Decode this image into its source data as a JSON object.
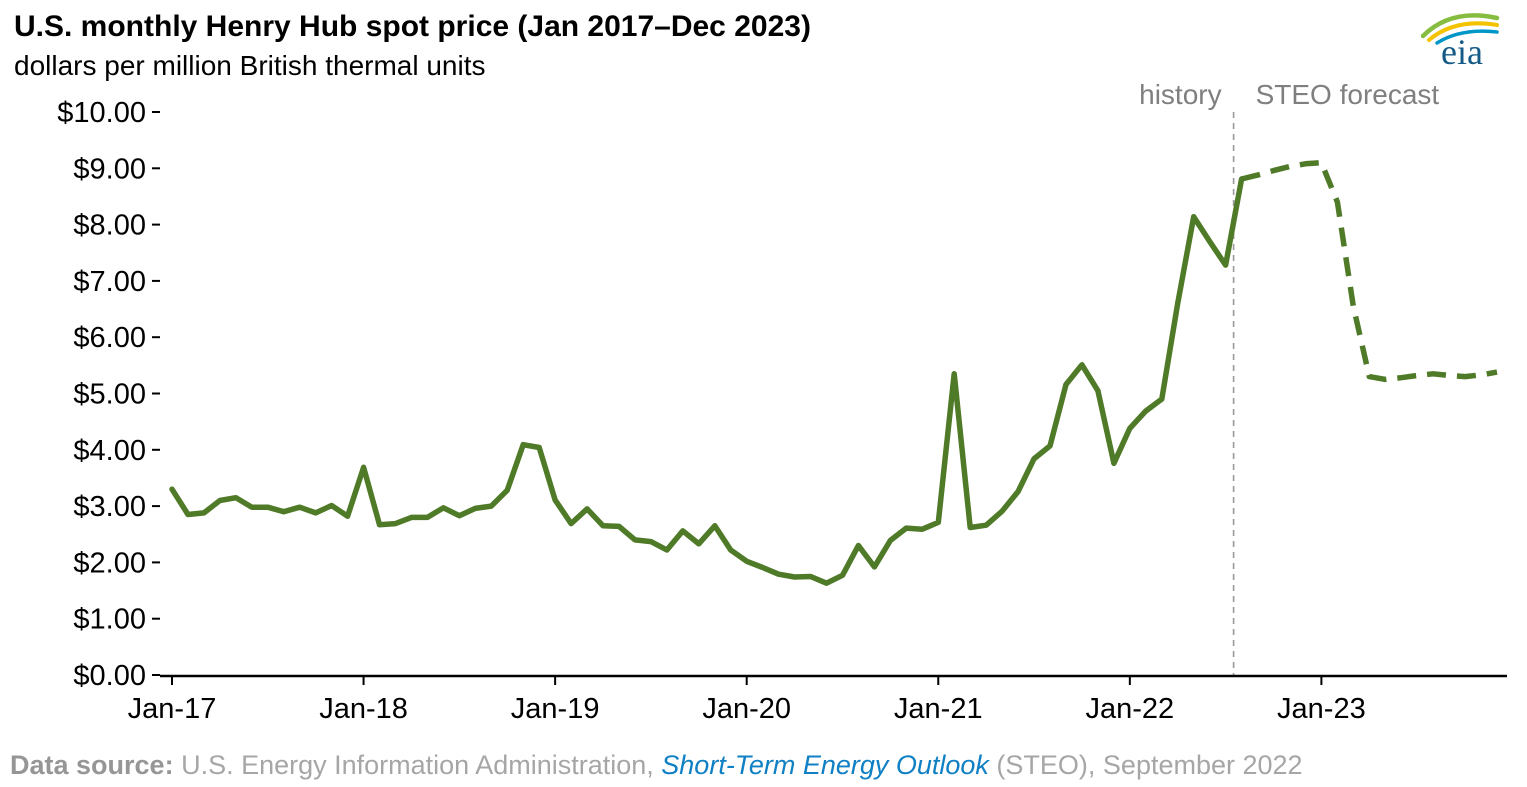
{
  "header": {
    "title": "U.S. monthly Henry Hub spot price (Jan 2017–Dec 2023)",
    "subtitle": "dollars per million British thermal units"
  },
  "logo": {
    "text": "eia"
  },
  "annotations": {
    "history_label": "history",
    "forecast_label": "STEO forecast"
  },
  "footer": {
    "prefix_bold": "Data source:",
    "source_text": " U.S. Energy Information Administration, ",
    "link_text": "Short-Term Energy Outlook",
    "suffix_text": " (STEO), September 2022"
  },
  "colors": {
    "line_green": "#4f7a28",
    "axis_black": "#000000",
    "divider_gray": "#9a9a9a",
    "annotation_gray": "#7f7f7f",
    "logo_blue": "#155a87",
    "logo_arc_green": "#86bc40",
    "logo_arc_yellow": "#f4c300",
    "logo_arc_blue": "#0096c8"
  },
  "chart_data": {
    "type": "line",
    "title": "U.S. monthly Henry Hub spot price (Jan 2017–Dec 2023)",
    "ylabel": "dollars per million British thermal units",
    "xlabel": "",
    "ylim": [
      0,
      10
    ],
    "ytick_step": 1,
    "ytick_labels": [
      "$0.00",
      "$1.00",
      "$2.00",
      "$3.00",
      "$4.00",
      "$5.00",
      "$6.00",
      "$7.00",
      "$8.00",
      "$9.00",
      "$10.00"
    ],
    "x_tick_labels": [
      "Jan-17",
      "Jan-18",
      "Jan-19",
      "Jan-20",
      "Jan-21",
      "Jan-22",
      "Jan-23"
    ],
    "x_tick_month_indices": [
      0,
      12,
      24,
      36,
      48,
      60,
      72
    ],
    "months_total": 84,
    "x_start": "Jan 2017",
    "x_end": "Dec 2023",
    "divider_month_index": 66.5,
    "grid": false,
    "legend": "none",
    "series": [
      {
        "name": "history",
        "style": "solid",
        "start_month_index": 0,
        "values": [
          3.3,
          2.85,
          2.88,
          3.1,
          3.15,
          2.98,
          2.98,
          2.9,
          2.98,
          2.88,
          3.01,
          2.82,
          3.69,
          2.67,
          2.69,
          2.8,
          2.8,
          2.97,
          2.83,
          2.96,
          3.0,
          3.28,
          4.09,
          4.04,
          3.11,
          2.69,
          2.95,
          2.65,
          2.64,
          2.4,
          2.37,
          2.22,
          2.56,
          2.33,
          2.65,
          2.22,
          2.02,
          1.91,
          1.79,
          1.74,
          1.75,
          1.63,
          1.77,
          2.3,
          1.92,
          2.39,
          2.61,
          2.59,
          2.71,
          5.35,
          2.62,
          2.66,
          2.91,
          3.26,
          3.84,
          4.07,
          5.16,
          5.51,
          5.05,
          3.76,
          4.38,
          4.69,
          4.9,
          6.6,
          8.14,
          7.7,
          7.28,
          8.81
        ]
      },
      {
        "name": "STEO forecast",
        "style": "dashed",
        "start_month_index": 67,
        "values": [
          8.81,
          8.88,
          8.96,
          9.03,
          9.08,
          9.1,
          8.4,
          6.55,
          5.3,
          5.25,
          5.28,
          5.32,
          5.35,
          5.32,
          5.3,
          5.33,
          5.38
        ]
      }
    ]
  }
}
